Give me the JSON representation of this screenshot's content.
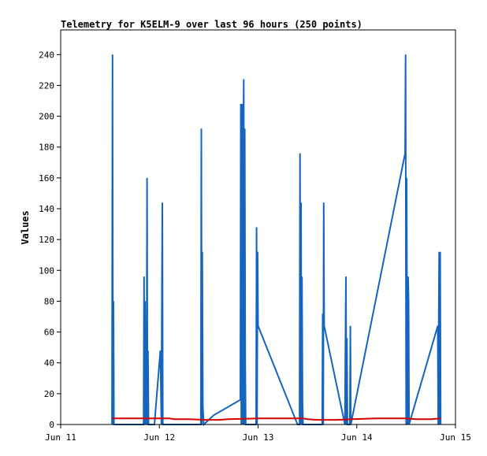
{
  "chart_data": {
    "type": "line",
    "title": "Telemetry for K5ELM-9 over last 96 hours (250 points)",
    "xlabel": "",
    "ylabel": "Values",
    "ylim": [
      0,
      256
    ],
    "xlim": [
      "Jun 11",
      "Jun 15"
    ],
    "x_ticks": [
      "Jun 11",
      "Jun 12",
      "Jun 13",
      "Jun 14",
      "Jun 15"
    ],
    "y_ticks": [
      0,
      20,
      40,
      60,
      80,
      100,
      120,
      140,
      160,
      180,
      200,
      220,
      240
    ],
    "grid": false,
    "legend": "none",
    "series": [
      {
        "color": "#1565c0",
        "points": [
          [
            11.52,
            0
          ],
          [
            11.525,
            240
          ],
          [
            11.53,
            0
          ],
          [
            11.535,
            80
          ],
          [
            11.54,
            0
          ],
          [
            11.84,
            0
          ],
          [
            11.845,
            96
          ],
          [
            11.85,
            0
          ],
          [
            11.855,
            80
          ],
          [
            11.86,
            0
          ],
          [
            11.865,
            66
          ],
          [
            11.87,
            0
          ],
          [
            11.875,
            160
          ],
          [
            11.88,
            0
          ],
          [
            11.885,
            48
          ],
          [
            11.89,
            0
          ],
          [
            11.95,
            0
          ],
          [
            12.01,
            48
          ],
          [
            12.02,
            0
          ],
          [
            12.025,
            80
          ],
          [
            12.03,
            144
          ],
          [
            12.035,
            0
          ],
          [
            12.42,
            0
          ],
          [
            12.425,
            192
          ],
          [
            12.43,
            0
          ],
          [
            12.435,
            112
          ],
          [
            12.44,
            12
          ],
          [
            12.45,
            0
          ],
          [
            12.55,
            6
          ],
          [
            12.82,
            16
          ],
          [
            12.825,
            208
          ],
          [
            12.83,
            0
          ],
          [
            12.835,
            112
          ],
          [
            12.84,
            208
          ],
          [
            12.845,
            0
          ],
          [
            12.85,
            168
          ],
          [
            12.855,
            224
          ],
          [
            12.86,
            0
          ],
          [
            12.865,
            192
          ],
          [
            12.87,
            40
          ],
          [
            12.875,
            0
          ],
          [
            12.98,
            0
          ],
          [
            12.985,
            128
          ],
          [
            12.99,
            0
          ],
          [
            12.995,
            112
          ],
          [
            13.0,
            64
          ],
          [
            13.4,
            0
          ],
          [
            13.42,
            0
          ],
          [
            13.425,
            176
          ],
          [
            13.43,
            0
          ],
          [
            13.435,
            144
          ],
          [
            13.44,
            0
          ],
          [
            13.445,
            96
          ],
          [
            13.45,
            16
          ],
          [
            13.455,
            0
          ],
          [
            13.65,
            0
          ],
          [
            13.655,
            72
          ],
          [
            13.66,
            0
          ],
          [
            13.665,
            144
          ],
          [
            13.67,
            64
          ],
          [
            13.88,
            0
          ],
          [
            13.885,
            48
          ],
          [
            13.89,
            96
          ],
          [
            13.895,
            0
          ],
          [
            13.9,
            56
          ],
          [
            13.905,
            0
          ],
          [
            13.93,
            0
          ],
          [
            13.935,
            64
          ],
          [
            13.94,
            0
          ],
          [
            14.49,
            176
          ],
          [
            14.495,
            240
          ],
          [
            14.5,
            0
          ],
          [
            14.505,
            160
          ],
          [
            14.51,
            64
          ],
          [
            14.515,
            0
          ],
          [
            14.52,
            96
          ],
          [
            14.525,
            80
          ],
          [
            14.53,
            0
          ],
          [
            14.82,
            64
          ],
          [
            14.825,
            0
          ],
          [
            14.83,
            64
          ],
          [
            14.835,
            112
          ],
          [
            14.84,
            0
          ],
          [
            14.845,
            112
          ],
          [
            14.85,
            0
          ]
        ]
      },
      {
        "color": "#d50000",
        "points": [
          [
            11.52,
            4
          ],
          [
            11.9,
            4
          ],
          [
            12.1,
            4
          ],
          [
            12.15,
            3.5
          ],
          [
            12.3,
            3.5
          ],
          [
            12.45,
            3
          ],
          [
            12.6,
            3
          ],
          [
            12.7,
            3.5
          ],
          [
            13.0,
            4
          ],
          [
            13.3,
            4
          ],
          [
            13.45,
            4
          ],
          [
            13.5,
            3.5
          ],
          [
            13.6,
            3
          ],
          [
            13.8,
            3
          ],
          [
            13.95,
            3.5
          ],
          [
            14.2,
            4
          ],
          [
            14.5,
            4
          ],
          [
            14.6,
            3.5
          ],
          [
            14.75,
            3.5
          ],
          [
            14.85,
            4
          ]
        ]
      },
      {
        "color": "#000000",
        "points": [
          [
            11.52,
            0
          ],
          [
            14.85,
            0
          ]
        ]
      }
    ]
  }
}
